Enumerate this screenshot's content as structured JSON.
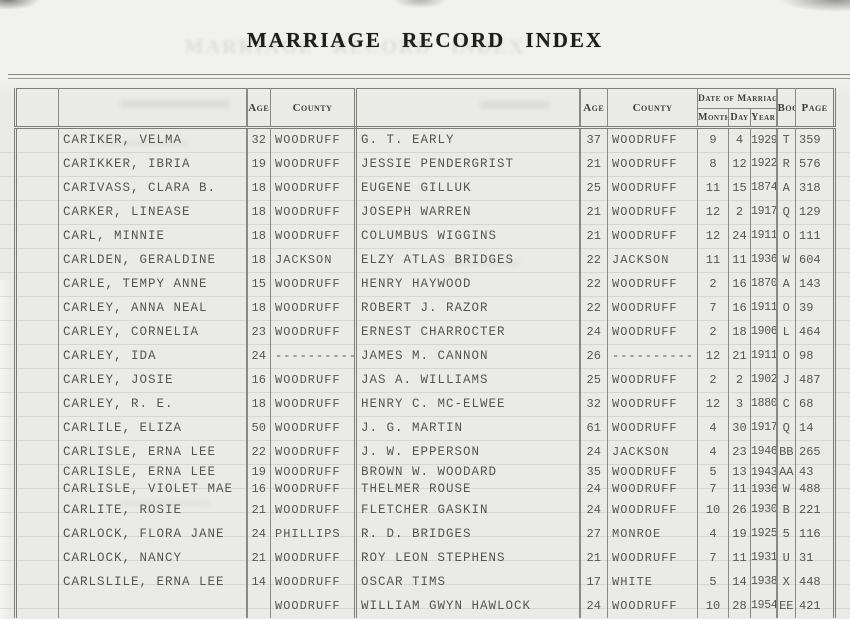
{
  "title": "MARRIAGE RECORD INDEX",
  "table": {
    "headers": {
      "age": "Age",
      "county": "County",
      "date_of_marriage": "Date of Marriage",
      "month": "Month",
      "day": "Day",
      "year": "Year",
      "book": "Book",
      "page": "Page"
    },
    "rows": [
      {
        "name": "CARIKER, VELMA",
        "age": "32",
        "county": "WOODRUFF",
        "spouse": "G. T. EARLY",
        "spouse_age": "37",
        "spouse_county": "WOODRUFF",
        "month": "9",
        "day": "4",
        "year": "1929",
        "book": "T",
        "page": "359"
      },
      {
        "name": "CARIKKER, IBRIA",
        "age": "19",
        "county": "WOODRUFF",
        "spouse": "JESSIE PENDERGRIST",
        "spouse_age": "21",
        "spouse_county": "WOODRUFF",
        "month": "8",
        "day": "12",
        "year": "1922",
        "book": "R",
        "page": "576"
      },
      {
        "name": "CARIVASS, CLARA B.",
        "age": "18",
        "county": "WOODRUFF",
        "spouse": "EUGENE GILLUK",
        "spouse_age": "25",
        "spouse_county": "WOODRUFF",
        "month": "11",
        "day": "15",
        "year": "1874",
        "book": "A",
        "page": "318"
      },
      {
        "name": "CARKER, LINEASE",
        "age": "18",
        "county": "WOODRUFF",
        "spouse": "JOSEPH WARREN",
        "spouse_age": "21",
        "spouse_county": "WOODRUFF",
        "month": "12",
        "day": "2",
        "year": "1917",
        "book": "Q",
        "page": "129"
      },
      {
        "name": "CARL, MINNIE",
        "age": "18",
        "county": "WOODRUFF",
        "spouse": "COLUMBUS WIGGINS",
        "spouse_age": "21",
        "spouse_county": "WOODRUFF",
        "month": "12",
        "day": "24",
        "year": "1911",
        "book": "O",
        "page": "111"
      },
      {
        "name": "CARLDEN, GERALDINE",
        "age": "18",
        "county": "JACKSON",
        "spouse": "ELZY ATLAS BRIDGES",
        "spouse_age": "22",
        "spouse_county": "JACKSON",
        "month": "11",
        "day": "11",
        "year": "1936",
        "book": "W",
        "page": "604"
      },
      {
        "name": "CARLE, TEMPY ANNE",
        "age": "15",
        "county": "WOODRUFF",
        "spouse": "HENRY HAYWOOD",
        "spouse_age": "22",
        "spouse_county": "WOODRUFF",
        "month": "2",
        "day": "16",
        "year": "1870",
        "book": "A",
        "page": "143"
      },
      {
        "name": "CARLEY, ANNA NEAL",
        "age": "18",
        "county": "WOODRUFF",
        "spouse": "ROBERT J. RAZOR",
        "spouse_age": "22",
        "spouse_county": "WOODRUFF",
        "month": "7",
        "day": "16",
        "year": "1911",
        "book": "O",
        "page": "39"
      },
      {
        "name": "CARLEY, CORNELIA",
        "age": "23",
        "county": "WOODRUFF",
        "spouse": "ERNEST CHARROCTER",
        "spouse_age": "24",
        "spouse_county": "WOODRUFF",
        "month": "2",
        "day": "18",
        "year": "1906",
        "book": "L",
        "page": "464"
      },
      {
        "name": "CARLEY, IDA",
        "age": "24",
        "county": "----------",
        "spouse": "JAMES M. CANNON",
        "spouse_age": "26",
        "spouse_county": "----------",
        "month": "12",
        "day": "21",
        "year": "1911",
        "book": "O",
        "page": "98"
      },
      {
        "name": "CARLEY, JOSIE",
        "age": "16",
        "county": "WOODRUFF",
        "spouse": "JAS A. WILLIAMS",
        "spouse_age": "25",
        "spouse_county": "WOODRUFF",
        "month": "2",
        "day": "2",
        "year": "1902",
        "book": "J",
        "page": "487"
      },
      {
        "name": "CARLEY, R. E.",
        "age": "18",
        "county": "WOODRUFF",
        "spouse": "HENRY C. MC-ELWEE",
        "spouse_age": "32",
        "spouse_county": "WOODRUFF",
        "month": "12",
        "day": "3",
        "year": "1880",
        "book": "C",
        "page": "68"
      },
      {
        "name": "CARLILE, ELIZA",
        "age": "50",
        "county": "WOODRUFF",
        "spouse": "J. G. MARTIN",
        "spouse_age": "61",
        "spouse_county": "WOODRUFF",
        "month": "4",
        "day": "30",
        "year": "1917",
        "book": "Q",
        "page": "14"
      },
      {
        "name": "CARLISLE, ERNA LEE",
        "age": "22",
        "county": "WOODRUFF",
        "spouse": "J. W. EPPERSON",
        "spouse_age": "24",
        "spouse_county": "JACKSON",
        "month": "4",
        "day": "23",
        "year": "1946",
        "book": "BB",
        "page": "265"
      },
      {
        "name": "CARLISLE, ERNA LEE",
        "age": "19",
        "county": "WOODRUFF",
        "spouse": "BROWN W. WOODARD",
        "spouse_age": "35",
        "spouse_county": "WOODRUFF",
        "month": "5",
        "day": "13",
        "year": "1943",
        "book": "AA",
        "page": "43"
      },
      {
        "name": "CARLISLE, VIOLET MAE",
        "age": "16",
        "county": "WOODRUFF",
        "spouse": "THELMER ROUSE",
        "spouse_age": "24",
        "spouse_county": "WOODRUFF",
        "month": "7",
        "day": "11",
        "year": "1936",
        "book": "W",
        "page": "488"
      },
      {
        "name": "CARLITE, ROSIE",
        "age": "21",
        "county": "WOODRUFF",
        "spouse": "FLETCHER GASKIN",
        "spouse_age": "24",
        "spouse_county": "WOODRUFF",
        "month": "10",
        "day": "26",
        "year": "1930",
        "book": "B",
        "page": "221"
      },
      {
        "name": "CARLOCK, FLORA JANE",
        "age": "24",
        "county": "PHILLIPS",
        "spouse": "R. D. BRIDGES",
        "spouse_age": "27",
        "spouse_county": "MONROE",
        "month": "4",
        "day": "19",
        "year": "1925",
        "book": "5",
        "page": "116"
      },
      {
        "name": "CARLOCK, NANCY",
        "age": "21",
        "county": "WOODRUFF",
        "spouse": "ROY LEON STEPHENS",
        "spouse_age": "21",
        "spouse_county": "WOODRUFF",
        "month": "7",
        "day": "11",
        "year": "1931",
        "book": "U",
        "page": "31"
      },
      {
        "name": "CARLSLILE, ERNA LEE",
        "age": "14",
        "county": "WOODRUFF",
        "spouse": "OSCAR TIMS",
        "spouse_age": "17",
        "spouse_county": "WHITE",
        "month": "5",
        "day": "14",
        "year": "1938",
        "book": "X",
        "page": "448"
      },
      {
        "name": "",
        "age": "",
        "county": "WOODRUFF",
        "spouse": "WILLIAM GWYN HAWLOCK",
        "spouse_age": "24",
        "spouse_county": "WOODRUFF",
        "month": "10",
        "day": "28",
        "year": "1954",
        "book": "EE",
        "page": "421"
      }
    ]
  }
}
